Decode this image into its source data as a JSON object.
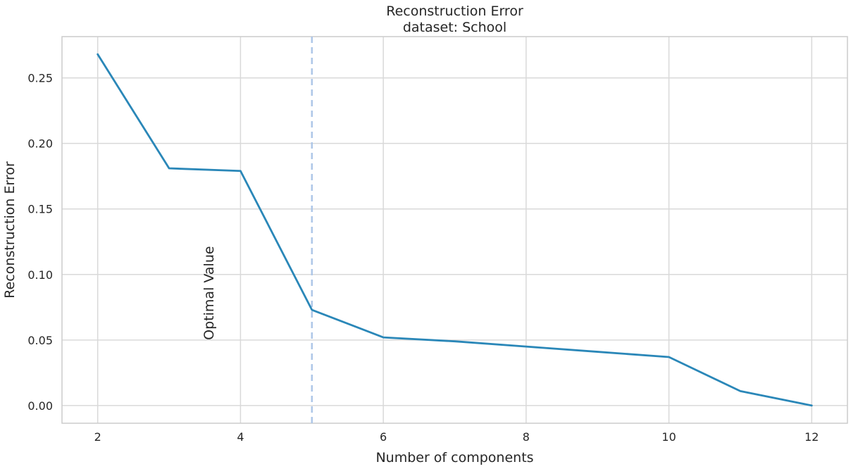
{
  "chart_data": {
    "type": "line",
    "title": "Reconstruction Error",
    "subtitle": "dataset: School",
    "xlabel": "Number of components",
    "ylabel": "Reconstruction Error",
    "xlim": [
      1.5,
      12.5
    ],
    "ylim": [
      -0.0135,
      0.2815
    ],
    "xticks": [
      2,
      4,
      6,
      8,
      10,
      12
    ],
    "yticks": [
      0.0,
      0.05,
      0.1,
      0.15,
      0.2,
      0.25
    ],
    "xtick_labels": [
      "2",
      "4",
      "6",
      "8",
      "10",
      "12"
    ],
    "ytick_labels": [
      "0.00",
      "0.05",
      "0.10",
      "0.15",
      "0.20",
      "0.25"
    ],
    "grid": true,
    "series": [
      {
        "x": [
          2,
          3,
          4,
          5,
          6,
          7,
          8,
          9,
          10,
          11,
          12
        ],
        "values": [
          0.268,
          0.181,
          0.179,
          0.073,
          0.052,
          0.049,
          0.045,
          0.041,
          0.037,
          0.011,
          0.0
        ],
        "color": "#2a87b8"
      }
    ],
    "vline": {
      "x": 5,
      "label": "Optimal Value",
      "label_x": 3.55,
      "label_y": 0.05,
      "color": "#aec7e8",
      "style": "dashed"
    }
  }
}
